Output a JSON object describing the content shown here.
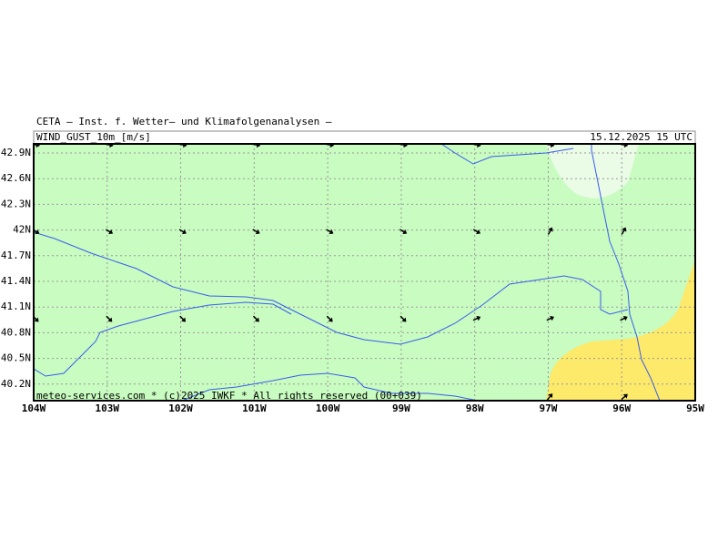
{
  "header": {
    "title": "CETA – Inst. f. Wetter– und Klimafolgenanalysen –",
    "variable": "WIND_GUST_10m_[m/s]",
    "datetime": "15.12.2025 15 UTC"
  },
  "axes": {
    "lat_labels": [
      "42.9N",
      "42.6N",
      "42.3N",
      "42N",
      "41.7N",
      "41.4N",
      "41.1N",
      "40.8N",
      "40.5N",
      "40.2N"
    ],
    "lon_labels": [
      "104W",
      "103W",
      "102W",
      "101W",
      "100W",
      "99W",
      "98W",
      "97W",
      "96W",
      "95W"
    ]
  },
  "footer": {
    "credit": "meteo-services.com * (c)2025 IWKF * All rights reserved (00+039)"
  }
}
